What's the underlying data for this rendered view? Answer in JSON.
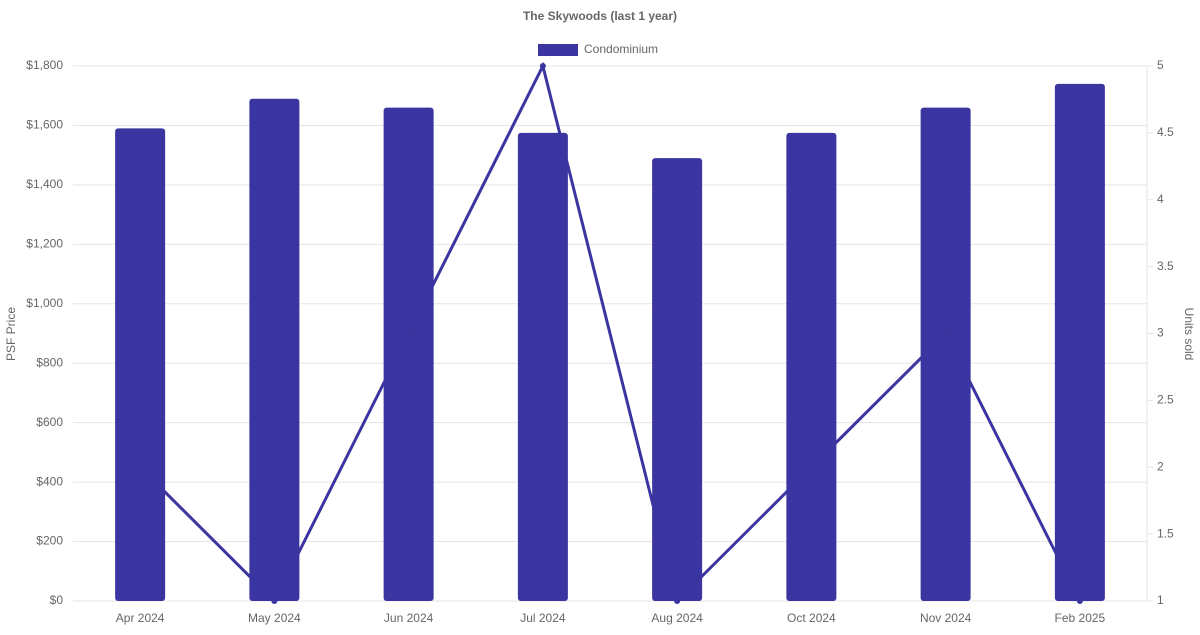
{
  "chart_data": {
    "type": "bar-line",
    "title": "The Skywoods (last 1 year)",
    "y_label": "PSF Price",
    "y2_label": "Units sold",
    "categories": [
      "Apr 2024",
      "May 2024",
      "Jun 2024",
      "Jul 2024",
      "Aug 2024",
      "Oct 2024",
      "Nov 2024",
      "Feb 2025"
    ],
    "series": [
      {
        "name": "Condominium",
        "type": "bar",
        "color": "#3a35a0",
        "values": [
          1590,
          1690,
          1660,
          1575,
          1490,
          1575,
          1660,
          1740
        ]
      },
      {
        "type": "line",
        "axis": "y2",
        "color": "#3a35a0",
        "values": [
          2,
          1,
          3,
          5,
          1,
          2,
          3,
          1
        ]
      }
    ],
    "ylim": [
      0,
      1800
    ],
    "yticks": [
      {
        "value": 0,
        "label": "$0"
      },
      {
        "value": 200,
        "label": "$200"
      },
      {
        "value": 400,
        "label": "$400"
      },
      {
        "value": 600,
        "label": "$600"
      },
      {
        "value": 800,
        "label": "$800"
      },
      {
        "value": 1000,
        "label": "$1,000"
      },
      {
        "value": 1200,
        "label": "$1,200"
      },
      {
        "value": 1400,
        "label": "$1,400"
      },
      {
        "value": 1600,
        "label": "$1,600"
      },
      {
        "value": 1800,
        "label": "$1,800"
      }
    ],
    "y2lim": [
      1,
      5
    ],
    "y2ticks": [
      1,
      1.5,
      2,
      2.5,
      3,
      3.5,
      4,
      4.5,
      5
    ],
    "grid": true,
    "legend": "top"
  }
}
